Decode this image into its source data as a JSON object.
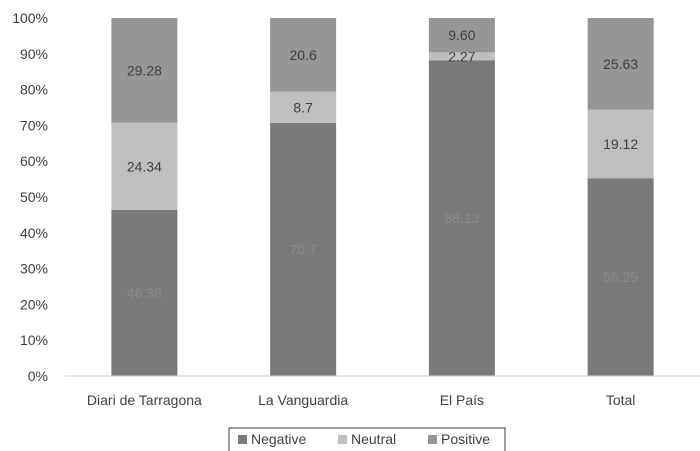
{
  "chart_data": {
    "type": "bar",
    "stacked": true,
    "percent_stacked": true,
    "categories": [
      "Diari de Tarragona",
      "La Vanguardia",
      "El País",
      "Total"
    ],
    "series": [
      {
        "name": "Negative",
        "values": [
          46.38,
          70.7,
          88.13,
          55.25
        ],
        "labels": [
          "46.38",
          "70.7",
          "88.13",
          "55.25"
        ],
        "color": "#7a7a7a",
        "label_color": "#8c8c8c"
      },
      {
        "name": "Neutral",
        "values": [
          24.34,
          8.7,
          2.27,
          19.12
        ],
        "labels": [
          "24.34",
          "8.7",
          "2.27",
          "19.12"
        ],
        "color": "#bfbfbf",
        "label_color": "#404040"
      },
      {
        "name": "Positive",
        "values": [
          29.28,
          20.6,
          9.6,
          25.63
        ],
        "labels": [
          "29.28",
          "20.6",
          "9.60",
          "25.63"
        ],
        "color": "#969696",
        "label_color": "#404040"
      }
    ],
    "yticks": [
      "0%",
      "10%",
      "20%",
      "30%",
      "40%",
      "50%",
      "60%",
      "70%",
      "80%",
      "90%",
      "100%"
    ],
    "ylim": [
      0,
      100
    ],
    "grid": false,
    "legend_position": "bottom"
  }
}
